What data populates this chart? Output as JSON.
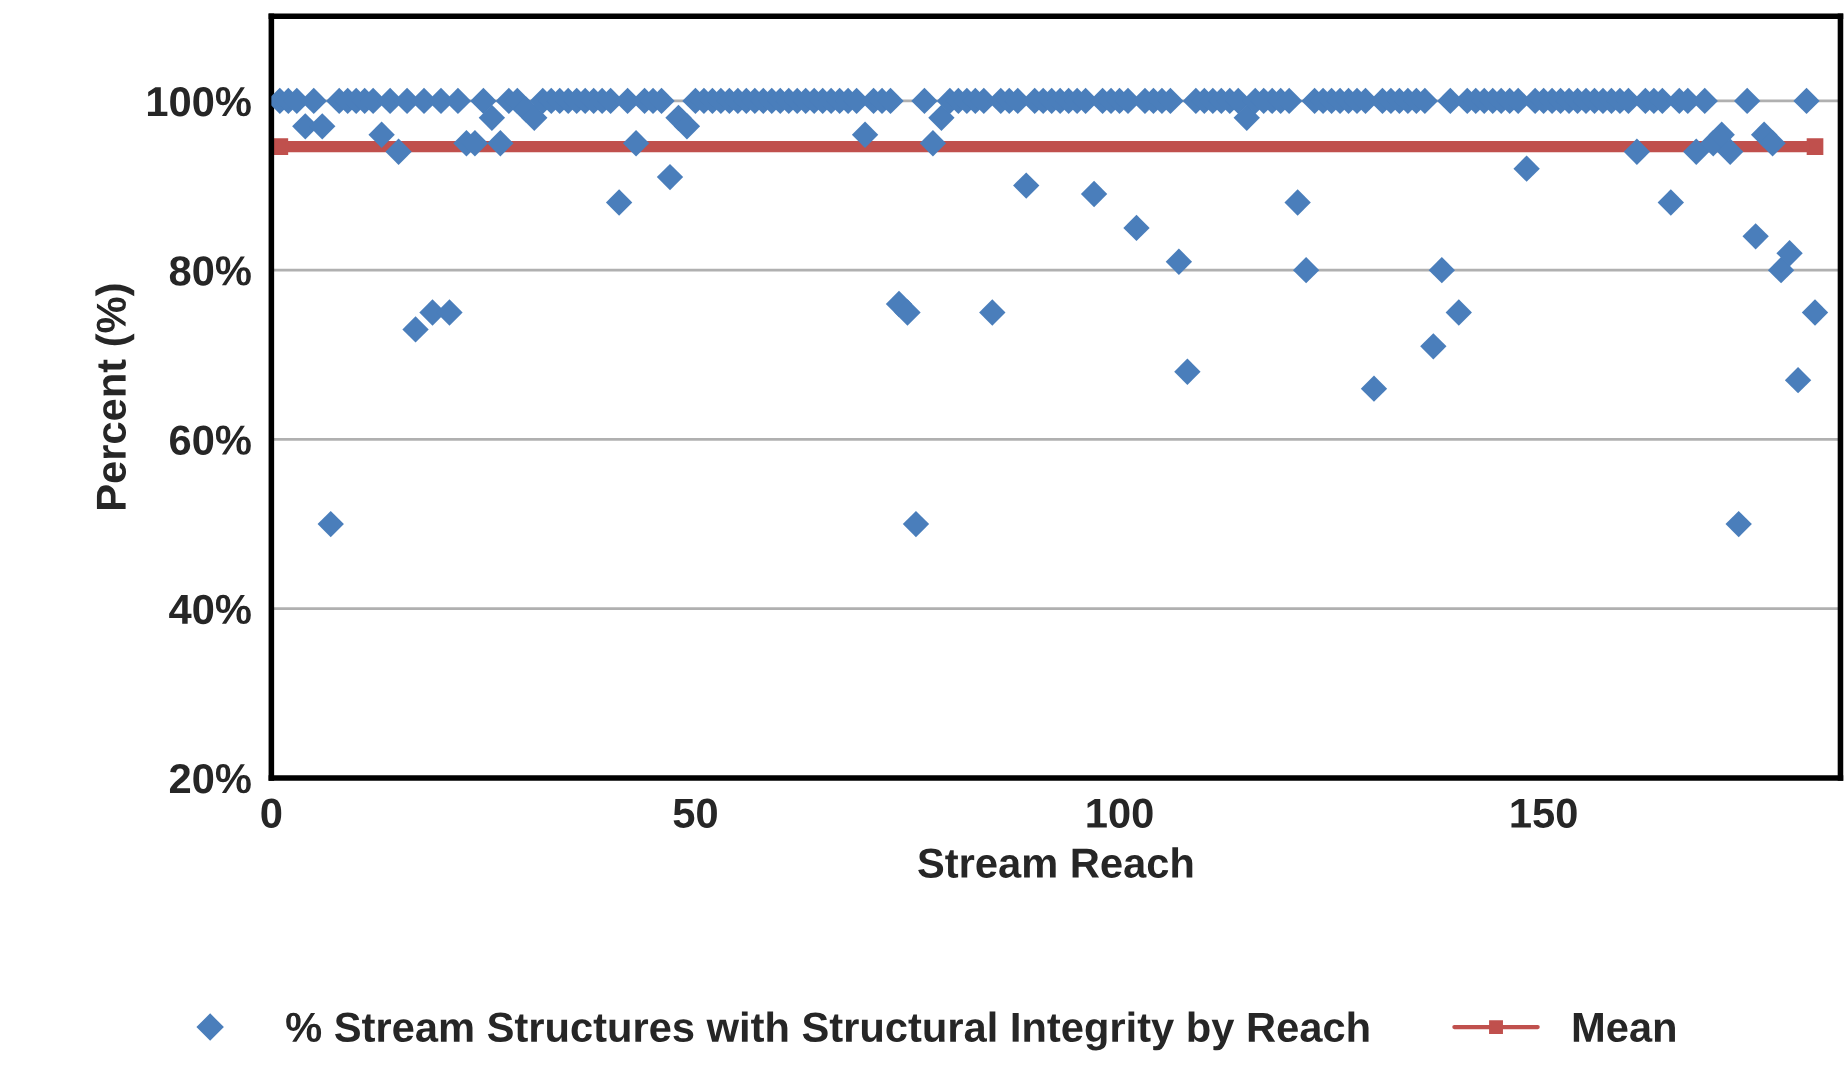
{
  "chart_data": {
    "type": "scatter",
    "xlabel": "Stream Reach",
    "ylabel": "Percent (%)",
    "xlim": [
      0,
      185
    ],
    "xticks": [
      0,
      50,
      100,
      150
    ],
    "ylim": [
      20,
      110
    ],
    "yticks": [
      {
        "value": 20,
        "label": "20%"
      },
      {
        "value": 40,
        "label": "40%"
      },
      {
        "value": 60,
        "label": "60%"
      },
      {
        "value": 80,
        "label": "80%"
      },
      {
        "value": 100,
        "label": "100%"
      }
    ],
    "grid": "y",
    "legend": "bottom",
    "series": [
      {
        "name": "% Stream Structures with Structural Integrity by Reach",
        "color": "#4a7ebb",
        "marker": "diamond",
        "x": [
          1,
          2,
          3,
          4,
          5,
          6,
          7,
          8,
          9,
          10,
          11,
          12,
          13,
          14,
          15,
          16,
          17,
          18,
          19,
          20,
          21,
          22,
          23,
          24,
          25,
          26,
          27,
          28,
          29,
          30,
          31,
          32,
          33,
          34,
          35,
          36,
          37,
          38,
          39,
          40,
          41,
          42,
          43,
          44,
          45,
          46,
          47,
          48,
          49,
          50,
          51,
          52,
          53,
          54,
          55,
          56,
          57,
          58,
          59,
          60,
          61,
          62,
          63,
          64,
          65,
          66,
          67,
          68,
          69,
          70,
          71,
          72,
          73,
          74,
          75,
          76,
          77,
          78,
          79,
          80,
          81,
          82,
          83,
          84,
          85,
          86,
          87,
          88,
          89,
          90,
          91,
          92,
          93,
          94,
          95,
          96,
          97,
          98,
          99,
          100,
          101,
          102,
          103,
          104,
          105,
          106,
          107,
          108,
          109,
          110,
          111,
          112,
          113,
          114,
          115,
          116,
          117,
          118,
          119,
          120,
          121,
          122,
          123,
          124,
          125,
          126,
          127,
          128,
          129,
          130,
          131,
          132,
          133,
          134,
          135,
          136,
          137,
          138,
          139,
          140,
          141,
          142,
          143,
          144,
          145,
          146,
          147,
          148,
          149,
          150,
          151,
          152,
          153,
          154,
          155,
          156,
          157,
          158,
          159,
          160,
          161,
          162,
          163,
          164,
          165,
          166,
          167,
          168,
          169,
          170,
          171,
          172,
          173,
          174,
          175,
          176,
          177,
          178,
          179,
          180,
          181,
          182
        ],
        "values": [
          100,
          100,
          100,
          97,
          100,
          97,
          50,
          100,
          100,
          100,
          100,
          100,
          96,
          100,
          94,
          100,
          73,
          100,
          75,
          100,
          75,
          100,
          95,
          95,
          100,
          98,
          95,
          100,
          100,
          99,
          98,
          100,
          100,
          100,
          100,
          100,
          100,
          100,
          100,
          100,
          88,
          100,
          95,
          100,
          100,
          100,
          91,
          98,
          97,
          100,
          100,
          100,
          100,
          100,
          100,
          100,
          100,
          100,
          100,
          100,
          100,
          100,
          100,
          100,
          100,
          100,
          100,
          100,
          100,
          96,
          100,
          100,
          100,
          76,
          75,
          50,
          100,
          95,
          98,
          100,
          100,
          100,
          100,
          100,
          75,
          100,
          100,
          100,
          90,
          100,
          100,
          100,
          100,
          100,
          100,
          100,
          89,
          100,
          100,
          100,
          100,
          85,
          100,
          100,
          100,
          100,
          81,
          68,
          100,
          100,
          100,
          100,
          100,
          100,
          98,
          100,
          100,
          100,
          100,
          100,
          88,
          80,
          100,
          100,
          100,
          100,
          100,
          100,
          100,
          66,
          100,
          100,
          100,
          100,
          100,
          100,
          71,
          80,
          100,
          75,
          100,
          100,
          100,
          100,
          100,
          100,
          100,
          92,
          100,
          100,
          100,
          100,
          100,
          100,
          100,
          100,
          100,
          100,
          100,
          100,
          94,
          100,
          100,
          100,
          88,
          100,
          100,
          94,
          100,
          95,
          96,
          94,
          50,
          100,
          84,
          96,
          95,
          80,
          82,
          67,
          100,
          75
        ]
      },
      {
        "name": "Mean",
        "color": "#c0504d",
        "type": "line",
        "marker": "square",
        "line_style": "solid",
        "x": [
          1,
          182
        ],
        "values": [
          94.6,
          94.6
        ]
      }
    ]
  }
}
